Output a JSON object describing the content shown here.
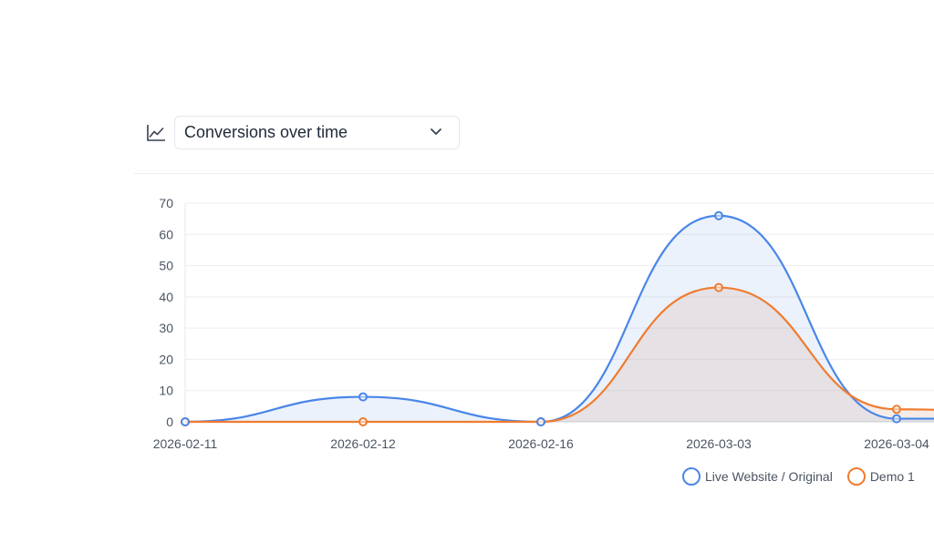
{
  "header": {
    "chart_icon": "line-chart-icon",
    "metric_select_value": "Conversions over time",
    "dropdown_icon": "chevron-down-icon"
  },
  "colors": {
    "series_1": "#4a86e8",
    "series_2": "#f07c30",
    "grid": "#eeeeee",
    "axis_text": "#4b5563"
  },
  "chart_data": {
    "type": "area",
    "categories": [
      "2026-02-11",
      "2026-02-12",
      "2026-02-16",
      "2026-03-03",
      "2026-03-04"
    ],
    "ylim": [
      0,
      70
    ],
    "yticks": [
      0,
      10,
      20,
      30,
      40,
      50,
      60,
      70
    ],
    "grid": true,
    "legend_position": "bottom-right",
    "series": [
      {
        "name": "Live Website / Original",
        "values": [
          0,
          8,
          0,
          66,
          1
        ]
      },
      {
        "name": "Demo 1",
        "values": [
          0,
          0,
          0,
          43,
          4
        ]
      }
    ]
  }
}
